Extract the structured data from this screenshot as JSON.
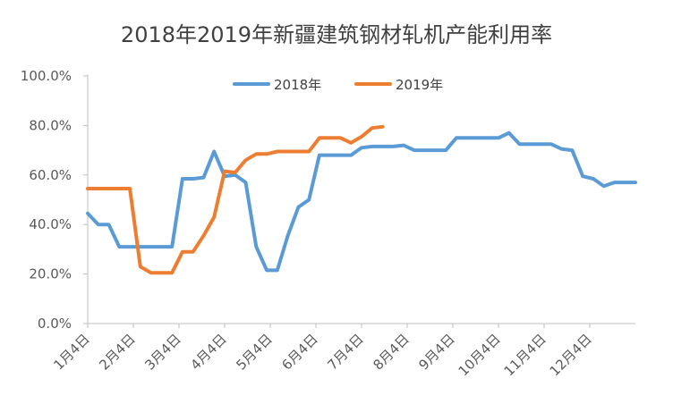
{
  "chart_data": {
    "type": "line",
    "title": "2018年2019年新疆建筑钢材轧机产能利用率",
    "xlabel": "",
    "ylabel": "",
    "ylim": [
      0,
      100
    ],
    "y_ticks": [
      "0.0%",
      "20.0%",
      "40.0%",
      "60.0%",
      "80.0%",
      "100.0%"
    ],
    "x_ticks": [
      "1月4日",
      "2月4日",
      "3月4日",
      "4月4日",
      "5月4日",
      "6月4日",
      "7月4日",
      "8月4日",
      "9月4日",
      "10月4日",
      "11月4日",
      "12月4日"
    ],
    "x_range_weeks": [
      0,
      52
    ],
    "grid": false,
    "legend_position": "top",
    "series": [
      {
        "name": "2018年",
        "color": "#5B9BD5",
        "points": [
          [
            0,
            44.5
          ],
          [
            1,
            40
          ],
          [
            2,
            40
          ],
          [
            3,
            31
          ],
          [
            4,
            31
          ],
          [
            5,
            31
          ],
          [
            6,
            31
          ],
          [
            7,
            31
          ],
          [
            8,
            31
          ],
          [
            9,
            58.5
          ],
          [
            10,
            58.5
          ],
          [
            11,
            59
          ],
          [
            12,
            69.5
          ],
          [
            13,
            59.5
          ],
          [
            14,
            60
          ],
          [
            15,
            57
          ],
          [
            16,
            31
          ],
          [
            17,
            21.5
          ],
          [
            18,
            21.5
          ],
          [
            19,
            35.5
          ],
          [
            20,
            47
          ],
          [
            21,
            50
          ],
          [
            22,
            68
          ],
          [
            23,
            68
          ],
          [
            24,
            68
          ],
          [
            25,
            68
          ],
          [
            26,
            71
          ],
          [
            27,
            71.5
          ],
          [
            28,
            71.5
          ],
          [
            29,
            71.5
          ],
          [
            30,
            72
          ],
          [
            31,
            70
          ],
          [
            32,
            70
          ],
          [
            33,
            70
          ],
          [
            34,
            70
          ],
          [
            35,
            75
          ],
          [
            36,
            75
          ],
          [
            37,
            75
          ],
          [
            38,
            75
          ],
          [
            39,
            75
          ],
          [
            40,
            77
          ],
          [
            41,
            72.5
          ],
          [
            42,
            72.5
          ],
          [
            43,
            72.5
          ],
          [
            44,
            72.5
          ],
          [
            45,
            70.5
          ],
          [
            46,
            70
          ],
          [
            47,
            59.5
          ],
          [
            48,
            58.5
          ],
          [
            49,
            55.5
          ],
          [
            50,
            57
          ],
          [
            51,
            57
          ],
          [
            52,
            57
          ]
        ]
      },
      {
        "name": "2019年",
        "color": "#ED7D31",
        "points": [
          [
            0,
            54.5
          ],
          [
            1,
            54.5
          ],
          [
            2,
            54.5
          ],
          [
            3,
            54.5
          ],
          [
            4,
            54.5
          ],
          [
            5,
            23
          ],
          [
            6,
            20.5
          ],
          [
            7,
            20.5
          ],
          [
            8,
            20.5
          ],
          [
            9,
            29
          ],
          [
            10,
            29
          ],
          [
            11,
            35.5
          ],
          [
            12,
            43
          ],
          [
            13,
            61.5
          ],
          [
            14,
            61
          ],
          [
            15,
            66
          ],
          [
            16,
            68.5
          ],
          [
            17,
            68.5
          ],
          [
            18,
            69.5
          ],
          [
            19,
            69.5
          ],
          [
            20,
            69.5
          ],
          [
            21,
            69.5
          ],
          [
            22,
            75
          ],
          [
            23,
            75
          ],
          [
            24,
            75
          ],
          [
            25,
            73
          ],
          [
            26,
            75.5
          ],
          [
            27,
            79
          ],
          [
            28,
            79.5
          ]
        ]
      }
    ]
  }
}
